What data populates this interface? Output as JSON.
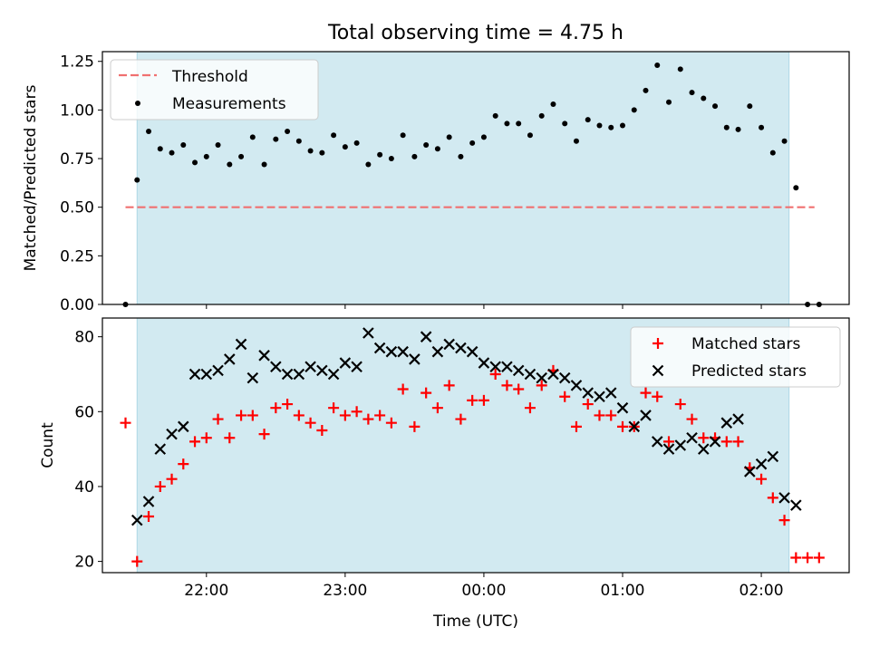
{
  "title": "Total observing time = 4.75 h",
  "colors": {
    "threshold": "#f07070",
    "measurement": "#000000",
    "matched": "#ff0000",
    "predicted": "#000000",
    "shade": "#add8e6"
  },
  "chart_data": [
    {
      "type": "scatter",
      "ylabel": "Matched/Predicted stars",
      "ylim": [
        0,
        1.3
      ],
      "yticks": [
        "0.00",
        "0.25",
        "0.50",
        "0.75",
        "1.00",
        "1.25"
      ],
      "xlim": [
        "21:15",
        "02:38"
      ],
      "shaded_range": [
        "21:30",
        "02:12"
      ],
      "legend": {
        "position": "upper-left",
        "entries": [
          "Threshold",
          "Measurements"
        ]
      },
      "threshold": {
        "name": "Threshold",
        "value": 0.5,
        "x": [
          "21:25",
          "02:23"
        ]
      },
      "series": [
        {
          "name": "Measurements",
          "x": [
            "21:25",
            "21:30",
            "21:35",
            "21:40",
            "21:45",
            "21:50",
            "21:55",
            "22:00",
            "22:05",
            "22:10",
            "22:15",
            "22:20",
            "22:25",
            "22:30",
            "22:35",
            "22:40",
            "22:45",
            "22:50",
            "22:55",
            "23:00",
            "23:05",
            "23:10",
            "23:15",
            "23:20",
            "23:25",
            "23:30",
            "23:35",
            "23:40",
            "23:45",
            "23:50",
            "23:55",
            "00:00",
            "00:05",
            "00:10",
            "00:15",
            "00:20",
            "00:25",
            "00:30",
            "00:35",
            "00:40",
            "00:45",
            "00:50",
            "00:55",
            "01:00",
            "01:05",
            "01:10",
            "01:15",
            "01:20",
            "01:25",
            "01:30",
            "01:35",
            "01:40",
            "01:45",
            "01:50",
            "01:55",
            "02:00",
            "02:05",
            "02:10",
            "02:15",
            "02:20",
            "02:25"
          ],
          "y": [
            0.0,
            0.64,
            0.89,
            0.8,
            0.78,
            0.82,
            0.73,
            0.76,
            0.82,
            0.72,
            0.76,
            0.86,
            0.72,
            0.85,
            0.89,
            0.84,
            0.79,
            0.78,
            0.87,
            0.81,
            0.83,
            0.72,
            0.77,
            0.75,
            0.87,
            0.76,
            0.82,
            0.8,
            0.86,
            0.76,
            0.83,
            0.86,
            0.97,
            0.93,
            0.93,
            0.87,
            0.97,
            1.03,
            0.93,
            0.84,
            0.95,
            0.92,
            0.91,
            0.92,
            1.0,
            1.1,
            1.23,
            1.04,
            1.21,
            1.09,
            1.06,
            1.02,
            0.91,
            0.9,
            1.02,
            0.91,
            0.78,
            0.84,
            0.6,
            0.0,
            0.0
          ]
        }
      ]
    },
    {
      "type": "scatter",
      "xlabel": "Time (UTC)",
      "ylabel": "Count",
      "ylim": [
        17,
        85
      ],
      "yticks": [
        "20",
        "40",
        "60",
        "80"
      ],
      "xticks": [
        "22:00",
        "23:00",
        "00:00",
        "01:00",
        "02:00"
      ],
      "xlim": [
        "21:15",
        "02:38"
      ],
      "shaded_range": [
        "21:30",
        "02:12"
      ],
      "legend": {
        "position": "upper-right",
        "entries": [
          "Matched stars",
          "Predicted stars"
        ]
      },
      "series": [
        {
          "name": "Matched stars",
          "marker": "+",
          "x": [
            "21:25",
            "21:30",
            "21:35",
            "21:40",
            "21:45",
            "21:50",
            "21:55",
            "22:00",
            "22:05",
            "22:10",
            "22:15",
            "22:20",
            "22:25",
            "22:30",
            "22:35",
            "22:40",
            "22:45",
            "22:50",
            "22:55",
            "23:00",
            "23:05",
            "23:10",
            "23:15",
            "23:20",
            "23:25",
            "23:30",
            "23:35",
            "23:40",
            "23:45",
            "23:50",
            "23:55",
            "00:00",
            "00:05",
            "00:10",
            "00:15",
            "00:20",
            "00:25",
            "00:30",
            "00:35",
            "00:40",
            "00:45",
            "00:50",
            "00:55",
            "01:00",
            "01:05",
            "01:10",
            "01:15",
            "01:20",
            "01:25",
            "01:30",
            "01:35",
            "01:40",
            "01:45",
            "01:50",
            "01:55",
            "02:00",
            "02:05",
            "02:10",
            "02:15",
            "02:20",
            "02:25"
          ],
          "y": [
            57,
            20,
            32,
            40,
            42,
            46,
            52,
            53,
            58,
            53,
            59,
            59,
            54,
            61,
            62,
            59,
            57,
            55,
            61,
            59,
            60,
            58,
            59,
            57,
            66,
            56,
            65,
            61,
            67,
            58,
            63,
            63,
            70,
            67,
            66,
            61,
            67,
            71,
            64,
            56,
            62,
            59,
            59,
            56,
            56,
            65,
            64,
            52,
            62,
            58,
            53,
            53,
            52,
            52,
            45,
            42,
            37,
            31,
            21,
            21,
            21
          ]
        },
        {
          "name": "Predicted stars",
          "marker": "x",
          "x": [
            "21:30",
            "21:35",
            "21:40",
            "21:45",
            "21:50",
            "21:55",
            "22:00",
            "22:05",
            "22:10",
            "22:15",
            "22:20",
            "22:25",
            "22:30",
            "22:35",
            "22:40",
            "22:45",
            "22:50",
            "22:55",
            "23:00",
            "23:05",
            "23:10",
            "23:15",
            "23:20",
            "23:25",
            "23:30",
            "23:35",
            "23:40",
            "23:45",
            "23:50",
            "23:55",
            "00:00",
            "00:05",
            "00:10",
            "00:15",
            "00:20",
            "00:25",
            "00:30",
            "00:35",
            "00:40",
            "00:45",
            "00:50",
            "00:55",
            "01:00",
            "01:05",
            "01:10",
            "01:15",
            "01:20",
            "01:25",
            "01:30",
            "01:35",
            "01:40",
            "01:45",
            "01:50",
            "01:55",
            "02:00",
            "02:05",
            "02:10",
            "02:15"
          ],
          "y": [
            31,
            36,
            50,
            54,
            56,
            70,
            70,
            71,
            74,
            78,
            69,
            75,
            72,
            70,
            70,
            72,
            71,
            70,
            73,
            72,
            81,
            77,
            76,
            76,
            74,
            80,
            76,
            78,
            77,
            76,
            73,
            72,
            72,
            71,
            70,
            69,
            70,
            69,
            67,
            65,
            64,
            65,
            61,
            56,
            59,
            52,
            50,
            51,
            53,
            50,
            52,
            57,
            58,
            44,
            46,
            48,
            37,
            35
          ]
        }
      ]
    }
  ]
}
